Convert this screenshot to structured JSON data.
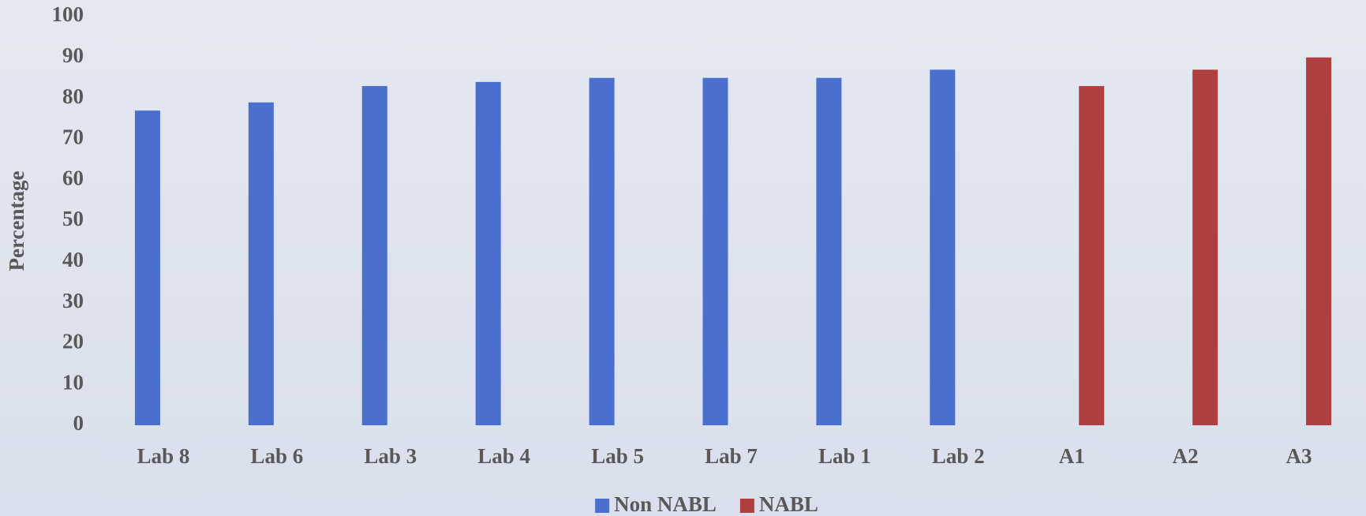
{
  "chart_data": {
    "type": "bar",
    "y_label": "Percentage",
    "categories": [
      "Lab 8",
      "Lab 6",
      "Lab 3",
      "Lab 4",
      "Lab 5",
      "Lab 7",
      "Lab 1",
      "Lab 2",
      "A1",
      "A2",
      "A3"
    ],
    "series": [
      {
        "name": "Non NABL",
        "color": "#4a6fcf",
        "values": [
          77,
          79,
          83,
          84,
          85,
          85,
          85,
          87,
          null,
          null,
          null
        ]
      },
      {
        "name": "NABL",
        "color": "#b04040",
        "values": [
          null,
          null,
          null,
          null,
          null,
          null,
          null,
          null,
          83,
          87,
          90
        ]
      }
    ],
    "ylim": [
      0,
      100
    ],
    "yticks": [
      0,
      10,
      20,
      30,
      40,
      50,
      60,
      70,
      80,
      90,
      100
    ],
    "grid": false,
    "legend": "bottom"
  }
}
